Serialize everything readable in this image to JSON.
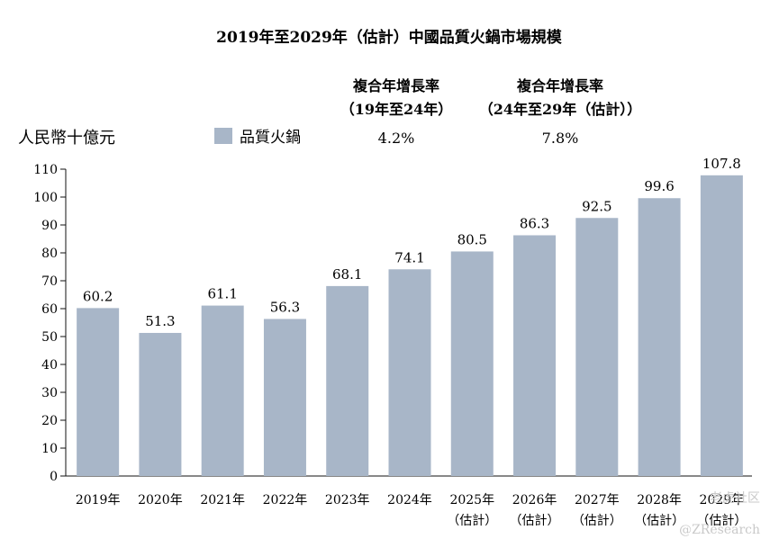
{
  "chart_data": {
    "type": "bar",
    "title": "2019年至2029年（估計）中國品質火鍋市場規模",
    "ylabel": "人民幣十億元",
    "ylim": [
      0,
      110
    ],
    "yticks": [
      "0",
      "10",
      "20",
      "30",
      "40",
      "50",
      "60",
      "70",
      "80",
      "90",
      "100",
      "110"
    ],
    "categories": [
      {
        "year": "2019年",
        "note": ""
      },
      {
        "year": "2020年",
        "note": ""
      },
      {
        "year": "2021年",
        "note": ""
      },
      {
        "year": "2022年",
        "note": ""
      },
      {
        "year": "2023年",
        "note": ""
      },
      {
        "year": "2024年",
        "note": ""
      },
      {
        "year": "2025年",
        "note": "（估計）"
      },
      {
        "year": "2026年",
        "note": "（估計）"
      },
      {
        "year": "2027年",
        "note": "（估計）"
      },
      {
        "year": "2028年",
        "note": "（估計）"
      },
      {
        "year": "2029年",
        "note": "（估計）"
      }
    ],
    "series": [
      {
        "name": "品質火鍋",
        "color": "#a8b6c8",
        "values": [
          60.2,
          51.3,
          61.1,
          56.3,
          68.1,
          74.1,
          80.5,
          86.3,
          92.5,
          99.6,
          107.8
        ],
        "labels": [
          "60.2",
          "51.3",
          "61.1",
          "56.3",
          "68.1",
          "74.1",
          "80.5",
          "86.3",
          "92.5",
          "99.6",
          "107.8"
        ]
      }
    ],
    "cagr": {
      "header1_line1": "複合年增長率",
      "header1_line2": "（19年至24年）",
      "header2_line1": "複合年增長率",
      "header2_line2": "（24年至29年（估計））",
      "value1": "4.2%",
      "value2": "7.8%"
    },
    "grid": false
  },
  "watermark": {
    "line1": "老虎社区",
    "line2": "@ZResearch"
  }
}
